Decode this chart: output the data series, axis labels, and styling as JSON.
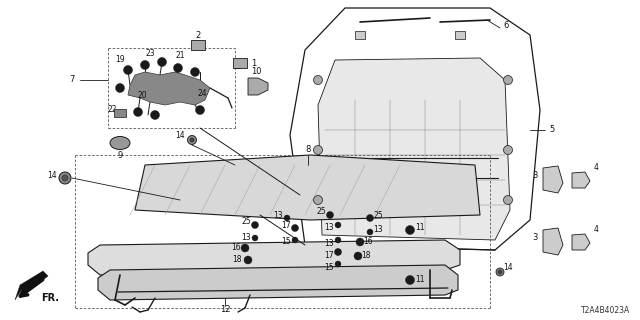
{
  "bg_color": "#ffffff",
  "diagram_code": "T2A4B4023A",
  "line_color": "#1a1a1a",
  "text_color": "#111111",
  "gray_fill": "#888888",
  "dark_fill": "#333333",
  "light_gray": "#cccccc"
}
